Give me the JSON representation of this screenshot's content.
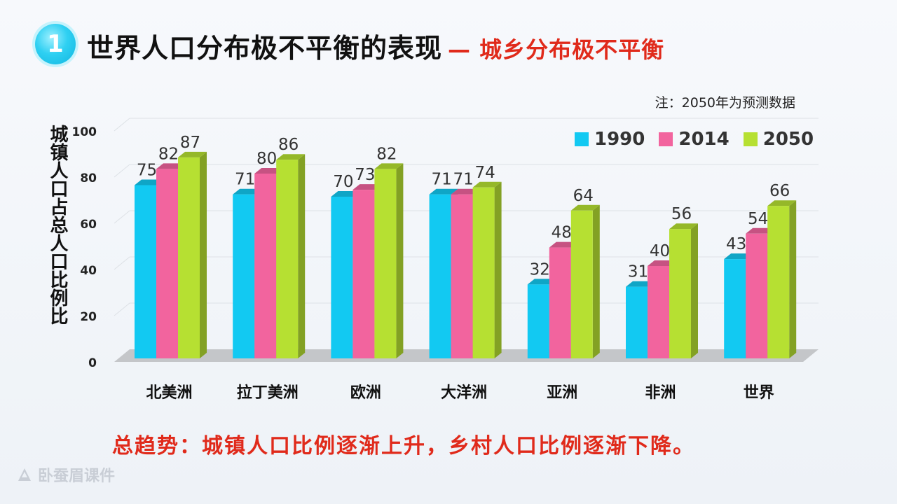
{
  "header": {
    "badge": "1",
    "title": "世界人口分布极不平衡的表现",
    "subtitle": "— 城乡分布极不平衡"
  },
  "note": "注：2050年为预测数据",
  "summary": "总趋势：城镇人口比例逐渐上升，乡村人口比例逐渐下降。",
  "logo": {
    "text": "卧蚕眉课件",
    "icon": "leaf-logo-icon"
  },
  "chart_data": {
    "type": "bar",
    "ylabel": "城镇人口占总人口比例比",
    "ylim": [
      0,
      100
    ],
    "yticks": [
      0,
      20,
      40,
      60,
      80,
      100
    ],
    "grid": true,
    "legend_position": "top-right",
    "categories": [
      "北美洲",
      "拉丁美洲",
      "欧洲",
      "大洋洲",
      "亚洲",
      "非洲",
      "世界"
    ],
    "series": [
      {
        "name": "1990",
        "color": "#12c9f2",
        "values": [
          75,
          71,
          70,
          71,
          32,
          31,
          43
        ]
      },
      {
        "name": "2014",
        "color": "#f2649e",
        "values": [
          82,
          80,
          73,
          71,
          48,
          40,
          54
        ]
      },
      {
        "name": "2050",
        "color": "#b6e032",
        "values": [
          87,
          86,
          82,
          74,
          64,
          56,
          66
        ]
      }
    ]
  }
}
